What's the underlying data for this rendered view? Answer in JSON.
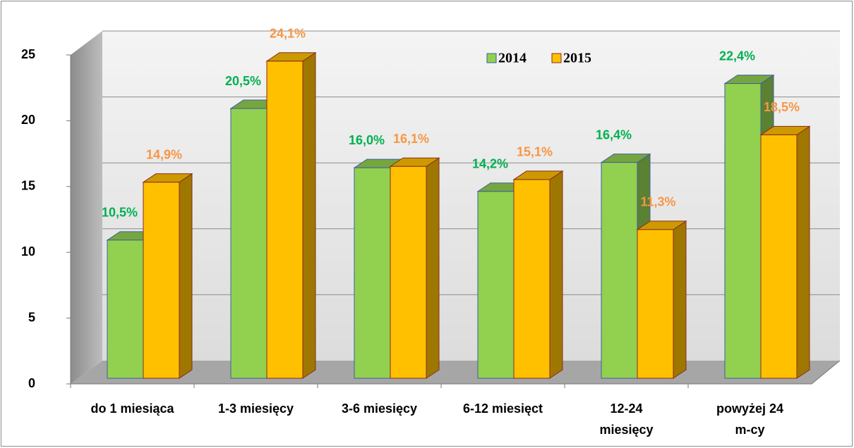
{
  "chart_data": {
    "type": "bar3d",
    "categories": [
      "do 1 miesiąca",
      "1-3 miesięcy",
      "3-6 miesięcy",
      "6-12 miesięct",
      "12-24\nmiesięcy",
      "powyżej 24\nm-cy"
    ],
    "series": [
      {
        "name": "2014",
        "color": "#92d050",
        "values": [
          10.5,
          20.5,
          16.0,
          14.2,
          16.4,
          22.4
        ],
        "value_labels": [
          "10,5%",
          "20,5%",
          "16,0%",
          "14,2%",
          "16,4%",
          "22,4%"
        ]
      },
      {
        "name": "2015",
        "color": "#ffc000",
        "values": [
          14.9,
          24.1,
          16.1,
          15.1,
          11.3,
          18.5
        ],
        "value_labels": [
          "14,9%",
          "24,1%",
          "16,1%",
          "15,1%",
          "11,3%",
          "18,5%"
        ]
      }
    ],
    "ylim": [
      0,
      25
    ],
    "yticks": [
      0,
      5,
      10,
      15,
      20,
      25
    ],
    "grid": true
  }
}
